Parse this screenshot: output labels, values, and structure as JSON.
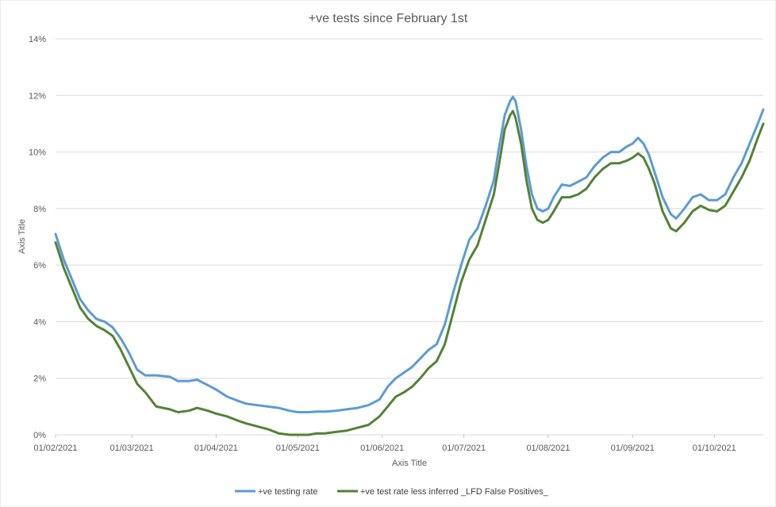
{
  "chart_data": {
    "type": "line",
    "title": "+ve tests since February 1st",
    "xlabel": "Axis Title",
    "ylabel": "Axis Title",
    "ylim": [
      0,
      14
    ],
    "xlim": [
      "2021-02-01",
      "2021-10-19"
    ],
    "yticks": [
      0,
      2,
      4,
      6,
      8,
      10,
      12,
      14
    ],
    "ytick_labels": [
      "0%",
      "2%",
      "4%",
      "6%",
      "8%",
      "10%",
      "12%",
      "14%"
    ],
    "xtick_dates": [
      "2021-02-01",
      "2021-03-01",
      "2021-04-01",
      "2021-05-01",
      "2021-06-01",
      "2021-07-01",
      "2021-08-01",
      "2021-09-01",
      "2021-10-01"
    ],
    "xtick_labels": [
      "01/02/2021",
      "01/03/2021",
      "01/04/2021",
      "01/05/2021",
      "01/06/2021",
      "01/07/2021",
      "01/08/2021",
      "01/09/2021",
      "01/10/2021"
    ],
    "grid": true,
    "legend_position": "bottom",
    "series": [
      {
        "name": "+ve testing rate",
        "color": "#5b9bd5",
        "points": [
          [
            "2021-02-01",
            7.1
          ],
          [
            "2021-02-04",
            6.2
          ],
          [
            "2021-02-07",
            5.5
          ],
          [
            "2021-02-10",
            4.8
          ],
          [
            "2021-02-13",
            4.4
          ],
          [
            "2021-02-16",
            4.1
          ],
          [
            "2021-02-19",
            4.0
          ],
          [
            "2021-02-22",
            3.8
          ],
          [
            "2021-02-25",
            3.4
          ],
          [
            "2021-02-28",
            2.9
          ],
          [
            "2021-03-03",
            2.3
          ],
          [
            "2021-03-06",
            2.1
          ],
          [
            "2021-03-10",
            2.1
          ],
          [
            "2021-03-15",
            2.05
          ],
          [
            "2021-03-18",
            1.9
          ],
          [
            "2021-03-22",
            1.9
          ],
          [
            "2021-03-25",
            1.95
          ],
          [
            "2021-03-29",
            1.75
          ],
          [
            "2021-04-01",
            1.6
          ],
          [
            "2021-04-05",
            1.35
          ],
          [
            "2021-04-09",
            1.2
          ],
          [
            "2021-04-12",
            1.1
          ],
          [
            "2021-04-16",
            1.05
          ],
          [
            "2021-04-20",
            1.0
          ],
          [
            "2021-04-24",
            0.95
          ],
          [
            "2021-04-28",
            0.85
          ],
          [
            "2021-05-01",
            0.8
          ],
          [
            "2021-05-05",
            0.8
          ],
          [
            "2021-05-08",
            0.82
          ],
          [
            "2021-05-11",
            0.82
          ],
          [
            "2021-05-15",
            0.85
          ],
          [
            "2021-05-19",
            0.9
          ],
          [
            "2021-05-23",
            0.95
          ],
          [
            "2021-05-27",
            1.05
          ],
          [
            "2021-05-31",
            1.25
          ],
          [
            "2021-06-03",
            1.7
          ],
          [
            "2021-06-06",
            2.0
          ],
          [
            "2021-06-09",
            2.2
          ],
          [
            "2021-06-12",
            2.4
          ],
          [
            "2021-06-15",
            2.7
          ],
          [
            "2021-06-18",
            3.0
          ],
          [
            "2021-06-21",
            3.2
          ],
          [
            "2021-06-24",
            3.9
          ],
          [
            "2021-06-27",
            5.0
          ],
          [
            "2021-06-30",
            6.0
          ],
          [
            "2021-07-03",
            6.9
          ],
          [
            "2021-07-06",
            7.3
          ],
          [
            "2021-07-09",
            8.1
          ],
          [
            "2021-07-12",
            9.0
          ],
          [
            "2021-07-14",
            10.2
          ],
          [
            "2021-07-16",
            11.3
          ],
          [
            "2021-07-18",
            11.8
          ],
          [
            "2021-07-19",
            11.95
          ],
          [
            "2021-07-20",
            11.8
          ],
          [
            "2021-07-22",
            10.8
          ],
          [
            "2021-07-24",
            9.5
          ],
          [
            "2021-07-26",
            8.5
          ],
          [
            "2021-07-28",
            8.0
          ],
          [
            "2021-07-30",
            7.9
          ],
          [
            "2021-08-01",
            8.0
          ],
          [
            "2021-08-03",
            8.4
          ],
          [
            "2021-08-06",
            8.85
          ],
          [
            "2021-08-09",
            8.8
          ],
          [
            "2021-08-12",
            8.95
          ],
          [
            "2021-08-15",
            9.1
          ],
          [
            "2021-08-18",
            9.5
          ],
          [
            "2021-08-21",
            9.8
          ],
          [
            "2021-08-24",
            10.0
          ],
          [
            "2021-08-27",
            10.0
          ],
          [
            "2021-08-30",
            10.2
          ],
          [
            "2021-09-01",
            10.3
          ],
          [
            "2021-09-03",
            10.5
          ],
          [
            "2021-09-05",
            10.3
          ],
          [
            "2021-09-07",
            9.9
          ],
          [
            "2021-09-09",
            9.3
          ],
          [
            "2021-09-12",
            8.4
          ],
          [
            "2021-09-15",
            7.8
          ],
          [
            "2021-09-17",
            7.65
          ],
          [
            "2021-09-20",
            8.0
          ],
          [
            "2021-09-23",
            8.4
          ],
          [
            "2021-09-26",
            8.5
          ],
          [
            "2021-09-29",
            8.3
          ],
          [
            "2021-10-02",
            8.3
          ],
          [
            "2021-10-05",
            8.5
          ],
          [
            "2021-10-08",
            9.1
          ],
          [
            "2021-10-11",
            9.6
          ],
          [
            "2021-10-14",
            10.3
          ],
          [
            "2021-10-17",
            11.0
          ],
          [
            "2021-10-19",
            11.5
          ]
        ]
      },
      {
        "name": "+ve test rate less inferred _LFD False Positives_",
        "color": "#548235",
        "points": [
          [
            "2021-02-01",
            6.8
          ],
          [
            "2021-02-04",
            5.9
          ],
          [
            "2021-02-07",
            5.2
          ],
          [
            "2021-02-10",
            4.5
          ],
          [
            "2021-02-13",
            4.1
          ],
          [
            "2021-02-16",
            3.85
          ],
          [
            "2021-02-19",
            3.7
          ],
          [
            "2021-02-22",
            3.5
          ],
          [
            "2021-02-25",
            3.0
          ],
          [
            "2021-02-28",
            2.4
          ],
          [
            "2021-03-03",
            1.8
          ],
          [
            "2021-03-06",
            1.5
          ],
          [
            "2021-03-10",
            1.0
          ],
          [
            "2021-03-15",
            0.9
          ],
          [
            "2021-03-18",
            0.8
          ],
          [
            "2021-03-22",
            0.85
          ],
          [
            "2021-03-25",
            0.95
          ],
          [
            "2021-03-29",
            0.85
          ],
          [
            "2021-04-01",
            0.75
          ],
          [
            "2021-04-05",
            0.65
          ],
          [
            "2021-04-09",
            0.5
          ],
          [
            "2021-04-12",
            0.4
          ],
          [
            "2021-04-16",
            0.3
          ],
          [
            "2021-04-20",
            0.2
          ],
          [
            "2021-04-24",
            0.05
          ],
          [
            "2021-04-28",
            0.0
          ],
          [
            "2021-05-01",
            0.0
          ],
          [
            "2021-05-05",
            0.0
          ],
          [
            "2021-05-08",
            0.05
          ],
          [
            "2021-05-11",
            0.05
          ],
          [
            "2021-05-15",
            0.1
          ],
          [
            "2021-05-19",
            0.15
          ],
          [
            "2021-05-23",
            0.25
          ],
          [
            "2021-05-27",
            0.35
          ],
          [
            "2021-05-31",
            0.65
          ],
          [
            "2021-06-03",
            1.0
          ],
          [
            "2021-06-06",
            1.35
          ],
          [
            "2021-06-09",
            1.5
          ],
          [
            "2021-06-12",
            1.7
          ],
          [
            "2021-06-15",
            2.0
          ],
          [
            "2021-06-18",
            2.35
          ],
          [
            "2021-06-21",
            2.6
          ],
          [
            "2021-06-24",
            3.2
          ],
          [
            "2021-06-27",
            4.3
          ],
          [
            "2021-06-30",
            5.4
          ],
          [
            "2021-07-03",
            6.2
          ],
          [
            "2021-07-06",
            6.7
          ],
          [
            "2021-07-09",
            7.6
          ],
          [
            "2021-07-12",
            8.5
          ],
          [
            "2021-07-14",
            9.6
          ],
          [
            "2021-07-16",
            10.8
          ],
          [
            "2021-07-18",
            11.3
          ],
          [
            "2021-07-19",
            11.45
          ],
          [
            "2021-07-20",
            11.2
          ],
          [
            "2021-07-22",
            10.3
          ],
          [
            "2021-07-24",
            9.0
          ],
          [
            "2021-07-26",
            8.0
          ],
          [
            "2021-07-28",
            7.6
          ],
          [
            "2021-07-30",
            7.5
          ],
          [
            "2021-08-01",
            7.6
          ],
          [
            "2021-08-03",
            7.9
          ],
          [
            "2021-08-06",
            8.4
          ],
          [
            "2021-08-09",
            8.4
          ],
          [
            "2021-08-12",
            8.5
          ],
          [
            "2021-08-15",
            8.7
          ],
          [
            "2021-08-18",
            9.1
          ],
          [
            "2021-08-21",
            9.4
          ],
          [
            "2021-08-24",
            9.6
          ],
          [
            "2021-08-27",
            9.6
          ],
          [
            "2021-08-30",
            9.7
          ],
          [
            "2021-09-01",
            9.8
          ],
          [
            "2021-09-03",
            9.95
          ],
          [
            "2021-09-05",
            9.8
          ],
          [
            "2021-09-07",
            9.4
          ],
          [
            "2021-09-09",
            8.9
          ],
          [
            "2021-09-12",
            7.9
          ],
          [
            "2021-09-15",
            7.3
          ],
          [
            "2021-09-17",
            7.2
          ],
          [
            "2021-09-20",
            7.5
          ],
          [
            "2021-09-23",
            7.9
          ],
          [
            "2021-09-26",
            8.1
          ],
          [
            "2021-09-29",
            7.95
          ],
          [
            "2021-10-02",
            7.9
          ],
          [
            "2021-10-05",
            8.1
          ],
          [
            "2021-10-08",
            8.6
          ],
          [
            "2021-10-11",
            9.1
          ],
          [
            "2021-10-14",
            9.7
          ],
          [
            "2021-10-17",
            10.5
          ],
          [
            "2021-10-19",
            11.0
          ]
        ]
      }
    ]
  }
}
